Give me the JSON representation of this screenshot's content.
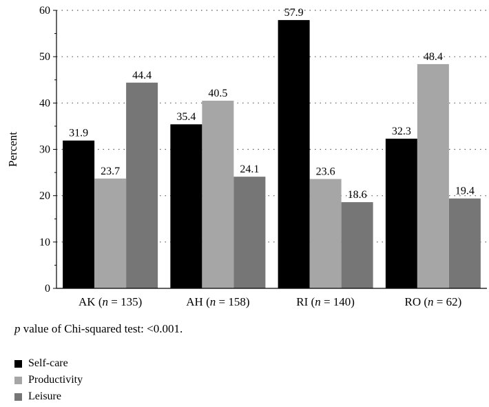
{
  "chart_data": {
    "type": "bar",
    "ylabel": "Percent",
    "ylim": [
      0,
      60
    ],
    "yticks": [
      "0",
      "10",
      "20",
      "30",
      "40",
      "50",
      "60"
    ],
    "categories": [
      {
        "prefix": "AK (",
        "n_var": "n",
        "suffix": " = 135)"
      },
      {
        "prefix": "AH (",
        "n_var": "n",
        "suffix": " = 158)"
      },
      {
        "prefix": "RI (",
        "n_var": "n",
        "suffix": " = 140)"
      },
      {
        "prefix": "RO (",
        "n_var": "n",
        "suffix": " = 62)"
      }
    ],
    "series": [
      {
        "name": "Self-care",
        "color": "#000000",
        "values": [
          31.9,
          35.4,
          57.9,
          32.3
        ],
        "labels": [
          "31.9",
          "35.4",
          "57.9",
          "32.3"
        ]
      },
      {
        "name": "Productivity",
        "color": "#a6a6a6",
        "values": [
          23.7,
          40.5,
          23.6,
          48.4
        ],
        "labels": [
          "23.7",
          "40.5",
          "23.6",
          "48.4"
        ]
      },
      {
        "name": "Leisure",
        "color": "#767676",
        "values": [
          44.4,
          24.1,
          18.6,
          19.4
        ],
        "labels": [
          "44.4",
          "24.1",
          "18.6",
          "19.4"
        ]
      }
    ],
    "grid": true,
    "legend_position": "bottom-left"
  },
  "note": {
    "p_symbol": "p",
    "text": " value of Chi-squared test: <0.001."
  }
}
